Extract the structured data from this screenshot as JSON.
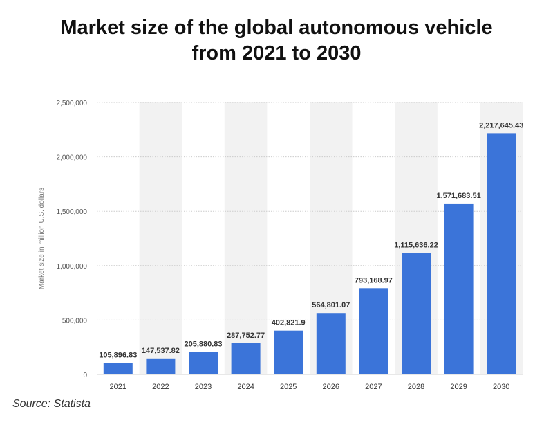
{
  "title_line1": "Market size of the global autonomous vehicle",
  "title_line2": "from 2021 to 2030",
  "source": "Source: Statista",
  "colors": {
    "bar": "#3b74d9",
    "band": "#f2f2f2",
    "grid": "#cccccc",
    "text": "#555555"
  },
  "chart_data": {
    "type": "bar",
    "title": "Market size of the global autonomous vehicle from 2021 to 2030",
    "xlabel": "",
    "ylabel": "Market size in million U.S. dollars",
    "ylim": [
      0,
      2500000
    ],
    "yticks": [
      0,
      500000,
      1000000,
      1500000,
      2000000,
      2500000
    ],
    "ytick_labels": [
      "0",
      "500,000",
      "1,000,000",
      "1,500,000",
      "2,000,000",
      "2,500,000"
    ],
    "categories": [
      "2021",
      "2022",
      "2023",
      "2024",
      "2025",
      "2026",
      "2027",
      "2028",
      "2029",
      "2030"
    ],
    "values": [
      105896.83,
      147537.82,
      205880.83,
      287752.77,
      402821.9,
      564801.07,
      793168.97,
      1115636.22,
      1571683.51,
      2217645.43
    ],
    "value_labels": [
      "105,896.83",
      "147,537.82",
      "205,880.83",
      "287,752.77",
      "402,821.9",
      "564,801.07",
      "793,168.97",
      "1,115,636.22",
      "1,571,683.51",
      "2,217,645.43"
    ],
    "grid": true,
    "legend": "none"
  }
}
